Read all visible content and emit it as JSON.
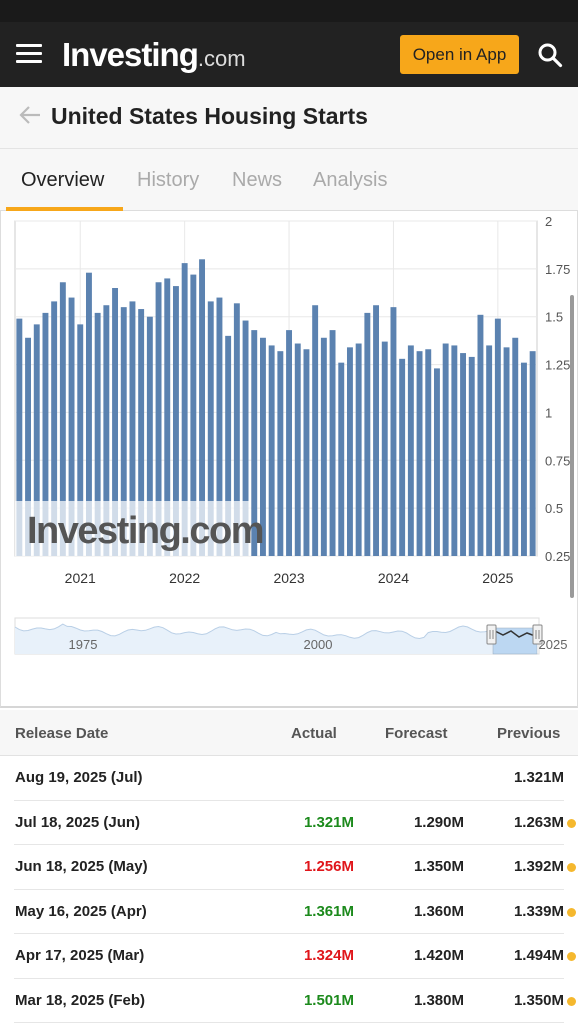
{
  "header": {
    "logo_text": "Investing",
    "logo_suffix": ".com",
    "open_app_label": "Open in App"
  },
  "page": {
    "title": "United States Housing Starts"
  },
  "tabs": [
    {
      "label": "Overview",
      "active": true
    },
    {
      "label": "History",
      "active": false
    },
    {
      "label": "News",
      "active": false
    },
    {
      "label": "Analysis",
      "active": false
    }
  ],
  "chart_data": {
    "type": "bar",
    "watermark": "Investing.com",
    "y_ticks": [
      "2",
      "1.75",
      "1.5",
      "1.25",
      "1",
      "0.75",
      "0.5",
      "0.25"
    ],
    "ylim": [
      0.25,
      2
    ],
    "x_tick_labels": [
      "2021",
      "2022",
      "2023",
      "2024",
      "2025"
    ],
    "values": [
      1.49,
      1.39,
      1.46,
      1.52,
      1.58,
      1.68,
      1.6,
      1.46,
      1.73,
      1.52,
      1.56,
      1.65,
      1.55,
      1.58,
      1.54,
      1.5,
      1.68,
      1.7,
      1.66,
      1.78,
      1.72,
      1.8,
      1.58,
      1.6,
      1.4,
      1.57,
      1.48,
      1.43,
      1.39,
      1.35,
      1.32,
      1.43,
      1.36,
      1.33,
      1.56,
      1.39,
      1.43,
      1.26,
      1.34,
      1.36,
      1.52,
      1.56,
      1.37,
      1.55,
      1.28,
      1.35,
      1.32,
      1.33,
      1.23,
      1.36,
      1.35,
      1.31,
      1.29,
      1.51,
      1.35,
      1.49,
      1.34,
      1.39,
      1.26,
      1.32
    ],
    "navigator_labels": [
      "1975",
      "2000",
      "2025"
    ],
    "bar_color": "#5b82b0"
  },
  "table": {
    "headers": {
      "date": "Release Date",
      "actual": "Actual",
      "forecast": "Forecast",
      "previous": "Previous"
    },
    "rows": [
      {
        "date": "Aug 19, 2025 (Jul)",
        "actual": "",
        "actual_status": "",
        "forecast": "",
        "previous": "1.321M",
        "revised": false
      },
      {
        "date": "Jul 18, 2025 (Jun)",
        "actual": "1.321M",
        "actual_status": "green",
        "forecast": "1.290M",
        "previous": "1.263M",
        "revised": true
      },
      {
        "date": "Jun 18, 2025 (May)",
        "actual": "1.256M",
        "actual_status": "red",
        "forecast": "1.350M",
        "previous": "1.392M",
        "revised": true
      },
      {
        "date": "May 16, 2025 (Apr)",
        "actual": "1.361M",
        "actual_status": "green",
        "forecast": "1.360M",
        "previous": "1.339M",
        "revised": true
      },
      {
        "date": "Apr 17, 2025 (Mar)",
        "actual": "1.324M",
        "actual_status": "red",
        "forecast": "1.420M",
        "previous": "1.494M",
        "revised": true
      },
      {
        "date": "Mar 18, 2025 (Feb)",
        "actual": "1.501M",
        "actual_status": "green",
        "forecast": "1.380M",
        "previous": "1.350M",
        "revised": true
      }
    ]
  }
}
